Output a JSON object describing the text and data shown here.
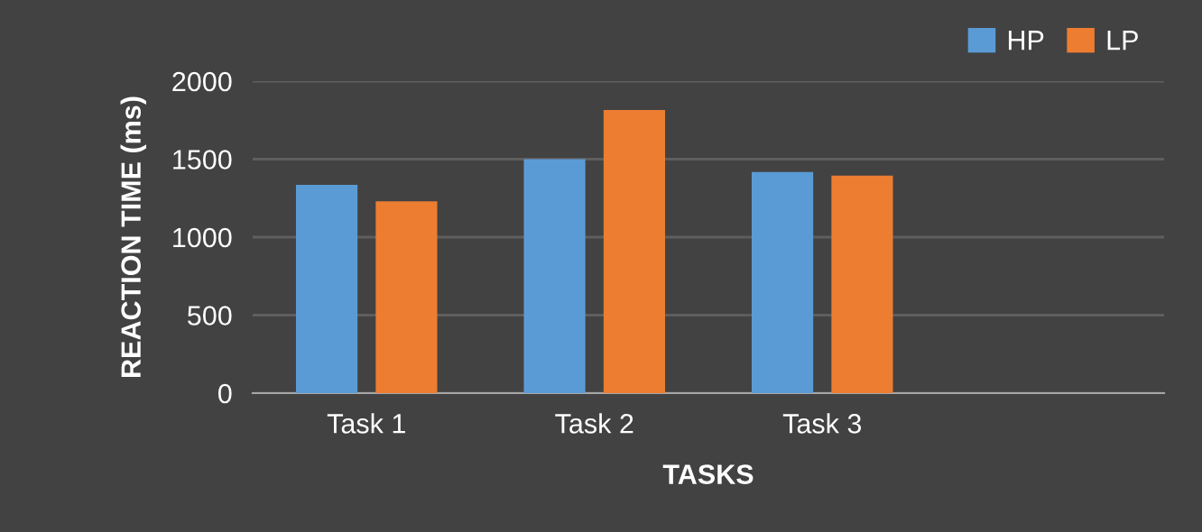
{
  "chart_data": {
    "type": "bar",
    "xlabel": "TASKS",
    "ylabel": "REACTION TIME (ms)",
    "categories": [
      "Task 1",
      "Task 2",
      "Task 3",
      null
    ],
    "series": [
      {
        "name": "HP",
        "color": "#5b9bd5",
        "values": [
          1335,
          1500,
          1417,
          null
        ]
      },
      {
        "name": "LP",
        "color": "#ed7d31",
        "values": [
          1230,
          1815,
          1394,
          null
        ]
      }
    ],
    "ylim": [
      0,
      2000
    ],
    "yticks": [
      0,
      500,
      1000,
      1500,
      2000
    ],
    "grid": "y",
    "legend": "top right"
  }
}
